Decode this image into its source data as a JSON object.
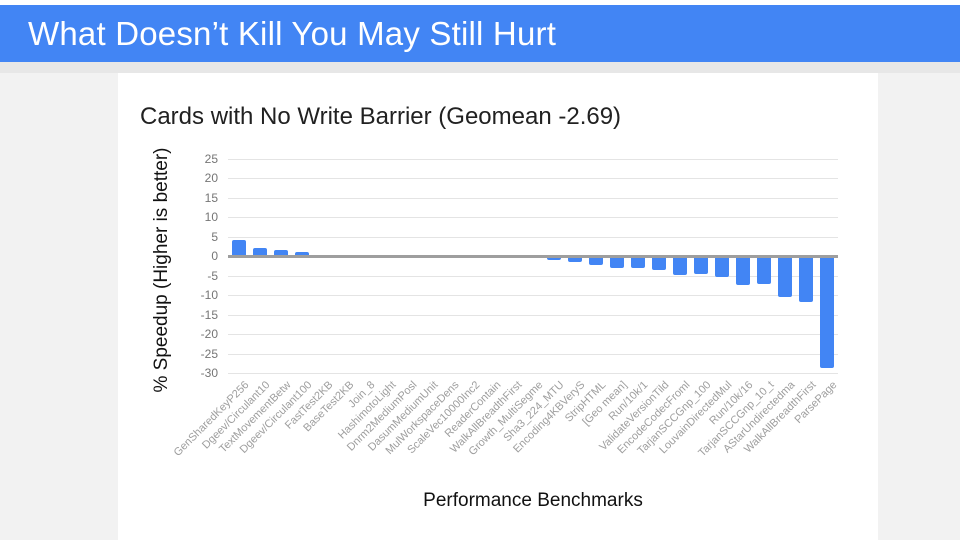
{
  "header": {
    "title": "What Doesn’t Kill You May Still Hurt",
    "bg_color": "#4285F4",
    "text_color": "#FFFFFF"
  },
  "chart": {
    "title": "Cards with No Write Barrier (Geomean -2.69)",
    "xlabel": "Performance Benchmarks",
    "ylabel": "% Speedup (Higher is better)"
  },
  "chart_data": {
    "type": "bar",
    "title": "Cards with No Write Barrier (Geomean -2.69)",
    "xlabel": "Performance Benchmarks",
    "ylabel": "% Speedup (Higher is better)",
    "bar_color": "#4285F4",
    "grid": true,
    "legend": "none",
    "ylim": [
      -30,
      25
    ],
    "ytick_interval": 5,
    "yticks": [
      25,
      20,
      15,
      10,
      5,
      0,
      -5,
      -10,
      -15,
      -20,
      -25,
      -30
    ],
    "categories": [
      "GenSharedKeyP256",
      "Dgeev/Circulant10",
      "TextMovementBetw",
      "Dgeev/Circulant100",
      "FastTest2KB",
      "BaseTest2KB",
      "Join_8",
      "HashimotoLight",
      "Dnrm2MediumPosl",
      "DasumMediumUnit",
      "MulWorkspaceDens",
      "ScaleVec10000Inc2",
      "ReaderContain",
      "WalkAllBreadthFirst",
      "Growth_MultiSegme",
      "Sha3_224_MTU",
      "Encoding4KBVeryS",
      "StripHTML",
      "[Geo mean]",
      "Run/10k/1",
      "ValidateVersionTild",
      "EncodeCodecFroml",
      "TarjanSCCGnp_100",
      "LouvainDirectedMul",
      "Run/10k/16",
      "TarjanSCCGnp_10_t",
      "AStarUndirectedma",
      "WalkAllBreadthFirst",
      "ParsePage"
    ],
    "values": [
      4.2,
      2.0,
      1.7,
      1.0,
      0,
      0,
      0,
      0,
      0,
      0,
      0,
      0,
      0,
      0,
      0,
      -0.8,
      -1.1,
      -2.1,
      -2.69,
      -2.8,
      -3.4,
      -4.5,
      -4.3,
      -5.2,
      -7.1,
      -6.8,
      -10.1,
      -11.5,
      -28.5
    ]
  }
}
